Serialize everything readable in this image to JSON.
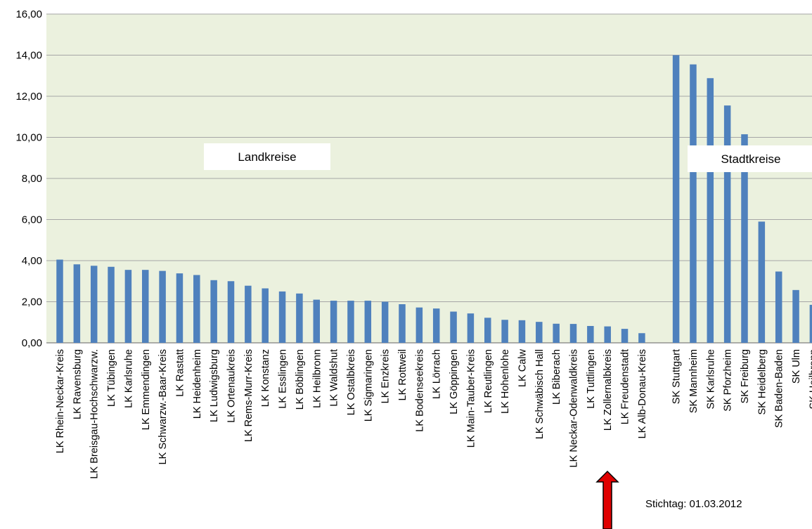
{
  "chart_data": {
    "type": "bar",
    "title": "",
    "xlabel": "",
    "ylabel": "",
    "ylim": [
      0,
      16
    ],
    "yticks": [
      "0,00",
      "2,00",
      "4,00",
      "6,00",
      "8,00",
      "10,00",
      "12,00",
      "14,00",
      "16,00"
    ],
    "grid": true,
    "colors": {
      "plot_bg": "#ebf1de",
      "bar": "#4f81bd",
      "grid": "#a6a6a6",
      "arrow": "#e00000"
    },
    "categories": [
      "LK Rhein-Neckar-Kreis",
      "LK Ravensburg",
      "LK Breisgau-Hochschwarzw.",
      "LK Tübingen",
      "LK Karlsruhe",
      "LK Emmendingen",
      "LK Schwarzw.-Baar-Kreis",
      "LK Rastatt",
      "LK Heidenheim",
      "LK Ludwigsburg",
      "LK Ortenaukreis",
      "LK Rems-Murr-Kreis",
      "LK Konstanz",
      "LK Esslingen",
      "LK Böblingen",
      "LK Heilbronn",
      "LK Waldshut",
      "LK Ostalbkreis",
      "LK Sigmaringen",
      "LK Enzkreis",
      "LK Rottweil",
      "LK Bodenseekreis",
      "LK Lörrach",
      "LK Göppingen",
      "LK Main-Tauber-Kreis",
      "LK Reutlingen",
      "LK Hohenlohe",
      "LK Calw",
      "LK Schwäbisch Hall",
      "LK Biberach",
      "LK Neckar-Odenwaldkreis",
      "LK Tuttlingen",
      "LK Zollernalbkreis",
      "LK Freudenstadt",
      "LK Alb-Donau-Kreis",
      "",
      "SK Stuttgart",
      "SK Mannheim",
      "SK Karlsruhe",
      "SK Pforzheim",
      "SK Freiburg",
      "SK Heidelberg",
      "SK Baden-Baden",
      "SK Ulm",
      "SK Heilbronn"
    ],
    "values": [
      4.05,
      3.82,
      3.75,
      3.7,
      3.55,
      3.55,
      3.5,
      3.38,
      3.3,
      3.05,
      3.0,
      2.78,
      2.65,
      2.5,
      2.4,
      2.1,
      2.05,
      2.05,
      2.05,
      2.0,
      1.88,
      1.72,
      1.67,
      1.52,
      1.43,
      1.22,
      1.12,
      1.1,
      1.02,
      0.93,
      0.92,
      0.82,
      0.8,
      0.68,
      0.47,
      null,
      14.0,
      13.55,
      12.88,
      11.55,
      10.15,
      5.9,
      3.47,
      2.57,
      1.85
    ],
    "annotations": {
      "landkreise": "Landkreise",
      "stadtkreise": "Stadtkreise",
      "stichtag": "Stichtag: 01.03.2012",
      "highlighted_category": "LK Zollernalbkreis"
    }
  }
}
